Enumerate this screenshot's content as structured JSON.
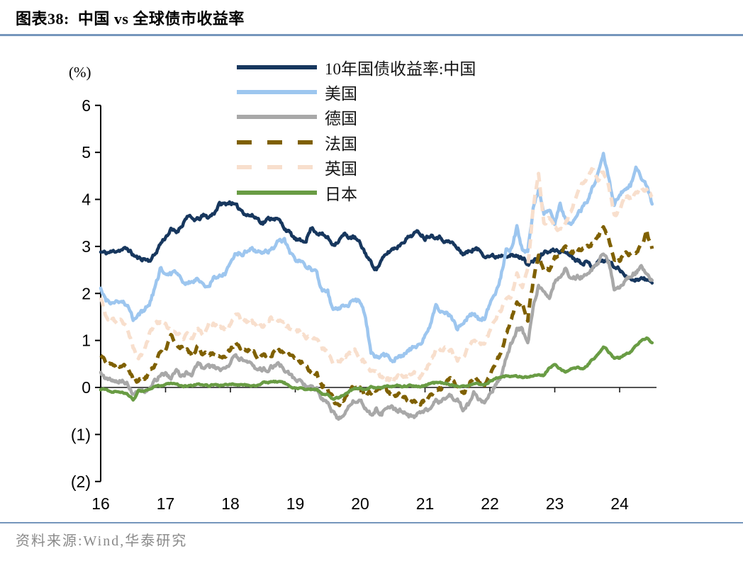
{
  "header": {
    "title": "图表38:  中国 vs 全球债市收益率"
  },
  "footer": {
    "source": "资料来源:Wind,华泰研究"
  },
  "style": {
    "rule_color": "#7596bc",
    "axis_color": "#000000",
    "source_text_color": "#8a8a8a"
  },
  "chart_data": {
    "type": "line",
    "unit_label": "(%)",
    "title": "中国 vs 全球债市收益率",
    "x_start_year": 2016.0,
    "x_step_years": 0.0833333,
    "xlim": [
      2016.0,
      2024.6
    ],
    "ylim": [
      -2,
      6
    ],
    "grid": false,
    "legend_position": "top-center",
    "xticks": {
      "years": [
        2016,
        2017,
        2018,
        2019,
        2020,
        2021,
        2022,
        2023,
        2024
      ],
      "labels": [
        "16",
        "17",
        "18",
        "19",
        "20",
        "21",
        "22",
        "23",
        "24"
      ]
    },
    "yticks": {
      "values": [
        6,
        5,
        4,
        3,
        2,
        1,
        0,
        -1,
        -2
      ],
      "labels": [
        "6",
        "5",
        "4",
        "3",
        "2",
        "1",
        "0",
        "(1)",
        "(2)"
      ]
    },
    "series": [
      {
        "name": "10年国债收益率:中国",
        "color": "#17375e",
        "dash": "solid",
        "values": [
          2.88,
          2.86,
          2.88,
          2.92,
          2.93,
          2.95,
          2.82,
          2.74,
          2.74,
          2.7,
          2.82,
          3.05,
          3.2,
          3.35,
          3.3,
          3.45,
          3.65,
          3.57,
          3.57,
          3.65,
          3.62,
          3.72,
          3.9,
          3.9,
          3.95,
          3.85,
          3.78,
          3.68,
          3.65,
          3.6,
          3.5,
          3.58,
          3.62,
          3.55,
          3.4,
          3.28,
          3.15,
          3.1,
          3.15,
          3.4,
          3.3,
          3.25,
          3.18,
          3.05,
          3.12,
          3.25,
          3.2,
          3.18,
          3.05,
          2.85,
          2.65,
          2.52,
          2.7,
          2.85,
          2.95,
          3.0,
          3.12,
          3.2,
          3.28,
          3.3,
          3.18,
          3.25,
          3.22,
          3.18,
          3.1,
          3.08,
          2.95,
          2.85,
          2.88,
          2.95,
          2.92,
          2.82,
          2.8,
          2.78,
          2.82,
          2.84,
          2.8,
          2.78,
          2.76,
          2.64,
          2.68,
          2.72,
          2.88,
          2.88,
          2.92,
          2.9,
          2.88,
          2.82,
          2.72,
          2.68,
          2.65,
          2.58,
          2.68,
          2.7,
          2.68,
          2.58,
          2.5,
          2.42,
          2.3,
          2.3,
          2.32,
          2.28,
          2.22
        ]
      },
      {
        "name": "美国",
        "color": "#9dc6ef",
        "dash": "solid",
        "values": [
          2.1,
          1.85,
          1.83,
          1.8,
          1.82,
          1.7,
          1.45,
          1.55,
          1.62,
          1.78,
          2.1,
          2.5,
          2.45,
          2.42,
          2.48,
          2.28,
          2.25,
          2.2,
          2.32,
          2.18,
          2.15,
          2.35,
          2.35,
          2.42,
          2.58,
          2.85,
          2.85,
          2.88,
          3.0,
          2.9,
          2.85,
          2.9,
          3.0,
          3.18,
          3.12,
          2.85,
          2.7,
          2.68,
          2.6,
          2.52,
          2.4,
          2.05,
          2.02,
          1.65,
          1.7,
          1.7,
          1.8,
          1.88,
          1.82,
          1.5,
          0.75,
          0.64,
          0.68,
          0.68,
          0.6,
          0.65,
          0.68,
          0.8,
          0.86,
          0.92,
          1.1,
          1.35,
          1.72,
          1.6,
          1.6,
          1.48,
          1.25,
          1.3,
          1.5,
          1.58,
          1.45,
          1.48,
          1.8,
          1.95,
          2.35,
          2.9,
          2.95,
          3.4,
          2.9,
          2.85,
          3.8,
          4.2,
          3.7,
          3.8,
          3.5,
          3.9,
          3.55,
          3.45,
          3.7,
          3.8,
          3.95,
          4.25,
          4.55,
          4.95,
          4.4,
          3.9,
          4.1,
          4.25,
          4.3,
          4.65,
          4.45,
          4.3,
          3.9
        ]
      },
      {
        "name": "德国",
        "color": "#a8a8a8",
        "dash": "solid",
        "values": [
          0.35,
          0.2,
          0.15,
          0.15,
          0.15,
          0.05,
          -0.12,
          -0.1,
          -0.08,
          0.0,
          0.15,
          0.25,
          0.3,
          0.22,
          0.4,
          0.25,
          0.35,
          0.28,
          0.55,
          0.4,
          0.42,
          0.45,
          0.35,
          0.42,
          0.5,
          0.7,
          0.6,
          0.55,
          0.55,
          0.35,
          0.38,
          0.4,
          0.45,
          0.5,
          0.38,
          0.25,
          0.18,
          0.1,
          0.05,
          -0.02,
          -0.05,
          -0.25,
          -0.35,
          -0.55,
          -0.7,
          -0.55,
          -0.35,
          -0.28,
          -0.25,
          -0.45,
          -0.6,
          -0.45,
          -0.55,
          -0.4,
          -0.45,
          -0.5,
          -0.5,
          -0.6,
          -0.62,
          -0.58,
          -0.52,
          -0.45,
          -0.3,
          -0.3,
          -0.18,
          -0.18,
          -0.28,
          -0.47,
          -0.35,
          -0.12,
          -0.25,
          -0.35,
          -0.12,
          0.05,
          0.2,
          0.65,
          0.95,
          1.25,
          1.25,
          0.9,
          1.7,
          2.15,
          2.05,
          1.9,
          2.25,
          2.3,
          2.55,
          2.3,
          2.35,
          2.35,
          2.45,
          2.55,
          2.65,
          2.85,
          2.65,
          2.1,
          2.15,
          2.3,
          2.4,
          2.45,
          2.55,
          2.45,
          2.28
        ]
      },
      {
        "name": "法国",
        "color": "#7f6000",
        "dash": "dashed",
        "values": [
          0.65,
          0.55,
          0.5,
          0.45,
          0.48,
          0.4,
          0.15,
          0.15,
          0.18,
          0.3,
          0.5,
          0.75,
          0.8,
          1.05,
          0.95,
          0.85,
          0.8,
          0.65,
          0.9,
          0.7,
          0.7,
          0.75,
          0.65,
          0.7,
          0.8,
          0.95,
          0.85,
          0.8,
          0.8,
          0.65,
          0.65,
          0.7,
          0.72,
          0.8,
          0.72,
          0.7,
          0.6,
          0.55,
          0.45,
          0.35,
          0.3,
          0.05,
          -0.05,
          -0.25,
          -0.4,
          -0.25,
          -0.05,
          0.05,
          0.0,
          -0.2,
          -0.1,
          -0.05,
          -0.05,
          -0.1,
          -0.15,
          -0.15,
          -0.2,
          -0.3,
          -0.32,
          -0.35,
          -0.3,
          -0.22,
          -0.05,
          -0.02,
          0.15,
          0.15,
          0.05,
          -0.12,
          0.0,
          0.25,
          0.1,
          0.02,
          0.25,
          0.45,
          0.75,
          1.15,
          1.45,
          1.8,
          1.8,
          1.45,
          2.25,
          2.8,
          2.55,
          2.45,
          2.75,
          2.8,
          3.05,
          2.85,
          2.9,
          2.9,
          3.0,
          3.05,
          3.2,
          3.4,
          3.2,
          2.65,
          2.7,
          2.85,
          2.8,
          2.9,
          3.0,
          3.3,
          2.95
        ]
      },
      {
        "name": "英国",
        "color": "#f8dfcd",
        "dash": "dashed",
        "values": [
          1.9,
          1.5,
          1.45,
          1.42,
          1.45,
          1.25,
          0.85,
          0.6,
          0.72,
          1.1,
          1.35,
          1.4,
          1.4,
          1.2,
          1.18,
          1.05,
          1.1,
          1.02,
          1.28,
          1.05,
          1.32,
          1.35,
          1.28,
          1.22,
          1.35,
          1.55,
          1.45,
          1.42,
          1.42,
          1.28,
          1.3,
          1.42,
          1.52,
          1.45,
          1.38,
          1.25,
          1.22,
          1.18,
          1.02,
          1.1,
          1.0,
          0.82,
          0.72,
          0.48,
          0.5,
          0.65,
          0.75,
          0.8,
          0.58,
          0.52,
          0.35,
          0.3,
          0.22,
          0.2,
          0.12,
          0.25,
          0.22,
          0.25,
          0.32,
          0.22,
          0.32,
          0.58,
          0.8,
          0.8,
          0.82,
          0.75,
          0.58,
          0.6,
          0.85,
          1.05,
          0.92,
          0.95,
          1.2,
          1.45,
          1.62,
          1.9,
          1.95,
          2.45,
          2.08,
          2.6,
          3.8,
          4.55,
          3.45,
          3.6,
          3.4,
          3.32,
          3.5,
          3.75,
          4.05,
          4.35,
          4.45,
          4.65,
          4.4,
          4.6,
          4.25,
          3.65,
          3.8,
          4.1,
          4.0,
          4.2,
          4.25,
          4.2,
          4.05
        ]
      },
      {
        "name": "日本",
        "color": "#699c44",
        "dash": "solid",
        "values": [
          -0.05,
          -0.02,
          -0.1,
          -0.08,
          -0.1,
          -0.15,
          -0.27,
          -0.07,
          -0.07,
          -0.05,
          0.02,
          0.04,
          0.06,
          0.08,
          0.07,
          0.02,
          0.04,
          0.05,
          0.08,
          0.05,
          0.03,
          0.07,
          0.04,
          0.05,
          0.08,
          0.07,
          0.05,
          0.04,
          0.05,
          0.04,
          0.1,
          0.11,
          0.12,
          0.13,
          0.1,
          0.01,
          0.0,
          -0.02,
          -0.05,
          -0.04,
          -0.05,
          -0.14,
          -0.15,
          -0.25,
          -0.22,
          -0.15,
          -0.08,
          -0.02,
          -0.02,
          -0.05,
          0.01,
          -0.01,
          0.0,
          0.03,
          0.02,
          0.04,
          0.02,
          0.03,
          0.03,
          0.02,
          0.04,
          0.08,
          0.1,
          0.09,
          0.08,
          0.05,
          0.03,
          0.02,
          0.05,
          0.09,
          0.07,
          0.07,
          0.13,
          0.2,
          0.22,
          0.24,
          0.24,
          0.23,
          0.22,
          0.22,
          0.24,
          0.25,
          0.25,
          0.42,
          0.48,
          0.4,
          0.32,
          0.4,
          0.42,
          0.4,
          0.45,
          0.6,
          0.7,
          0.88,
          0.75,
          0.62,
          0.62,
          0.7,
          0.75,
          0.88,
          1.0,
          1.05,
          0.95
        ]
      }
    ]
  }
}
